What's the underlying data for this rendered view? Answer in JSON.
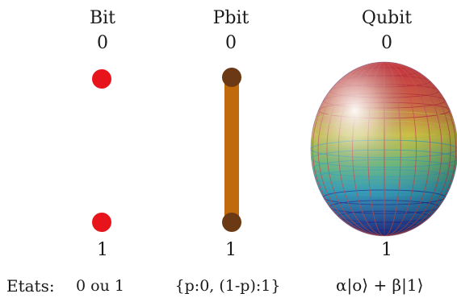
{
  "columns": [
    {
      "title": "Bit",
      "top_label": "0",
      "bottom_label": "1",
      "states": "0 ou 1"
    },
    {
      "title": "Pbit",
      "top_label": "0",
      "bottom_label": "1",
      "states": "{p:0, (1-p):1}"
    },
    {
      "title": "Qubit",
      "top_label": "0",
      "bottom_label": "1",
      "states": "α|o⟩ + β|1⟩"
    }
  ],
  "states_row_label": "Etats:",
  "colors": {
    "bit_dot": "#e8141c",
    "pbit_bar": "#c06a0c",
    "pbit_dot": "#6b3a14",
    "sphere_grid_top": "#c0202e",
    "sphere_grid_mid": "#c8c430",
    "sphere_grid_low": "#30a8c8",
    "sphere_grid_bottom": "#1a2aa8"
  }
}
